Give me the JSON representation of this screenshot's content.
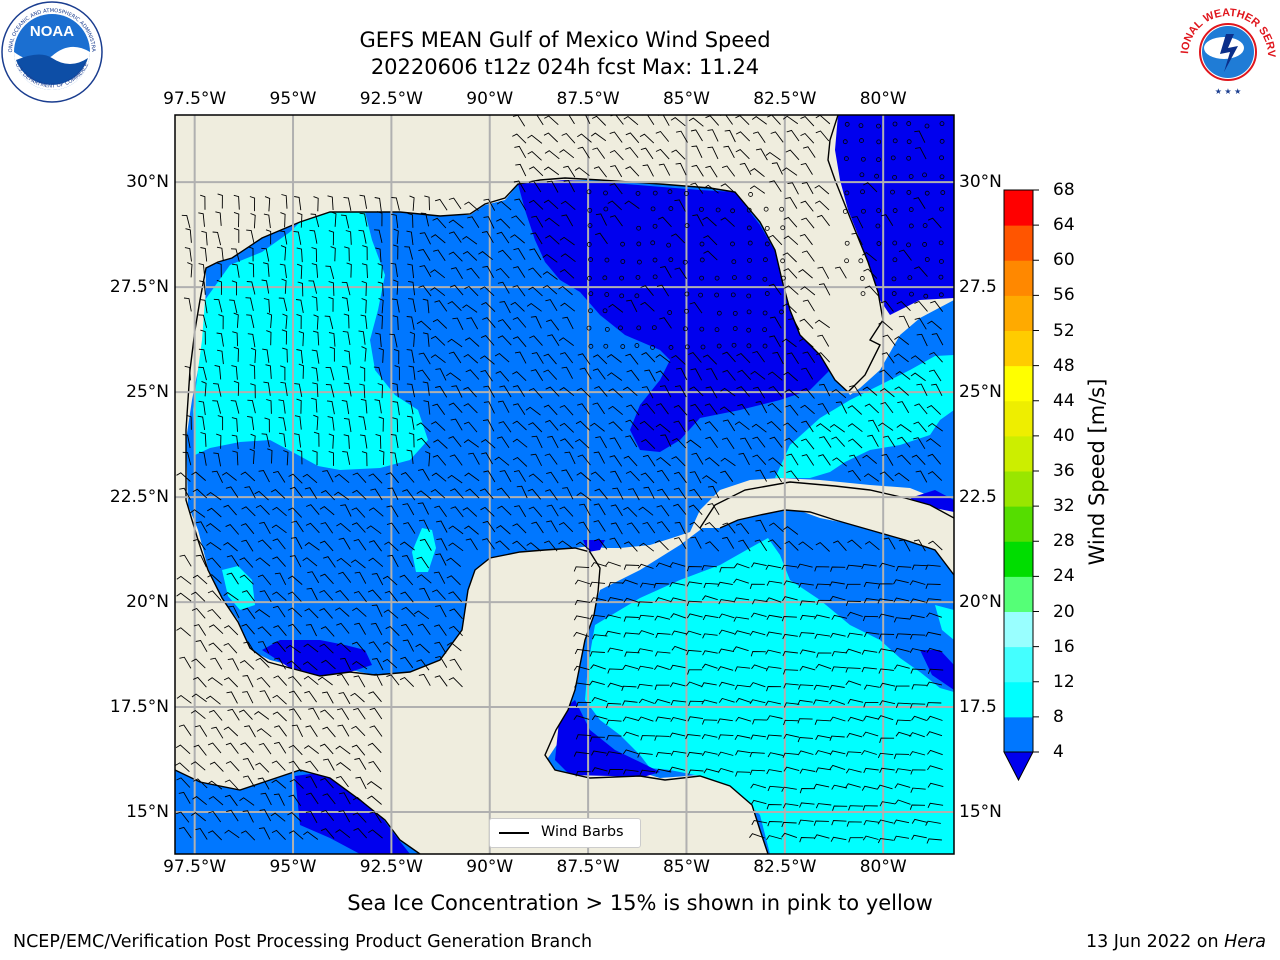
{
  "title": {
    "line1": "GEFS MEAN Gulf of Mexico Wind Speed",
    "line2": "20220606 t12z 024h fcst   Max: 11.24"
  },
  "axes": {
    "lon_labels": [
      "97.5°W",
      "95°W",
      "92.5°W",
      "90°W",
      "87.5°W",
      "85°W",
      "82.5°W",
      "80°W"
    ],
    "lon_values": [
      -97.5,
      -95,
      -92.5,
      -90,
      -87.5,
      -85,
      -82.5,
      -80
    ],
    "lat_labels_left": [
      "30°N",
      "27.5°N",
      "25°N",
      "22.5°N",
      "20°N",
      "17.5°N",
      "15°N"
    ],
    "lat_labels_right": [
      "30°N",
      "27.5",
      "25°N",
      "22.5",
      "20°N",
      "17.5",
      "15°N"
    ],
    "lat_values": [
      30,
      27.5,
      25,
      22.5,
      20,
      17.5,
      15
    ],
    "lon_range": [
      -98,
      -78.2
    ],
    "lat_range": [
      14,
      31.6
    ],
    "grid": true
  },
  "colorbar": {
    "title": "Wind Speed [m/s]",
    "levels": [
      4,
      8,
      12,
      16,
      20,
      24,
      28,
      32,
      36,
      40,
      44,
      48,
      52,
      56,
      60,
      64,
      68
    ],
    "colors": [
      "#0077ff",
      "#00ffff",
      "#44ffff",
      "#99ffff",
      "#55ff77",
      "#00dd00",
      "#55dd00",
      "#99e600",
      "#ccee00",
      "#eeee00",
      "#ffff00",
      "#ffcc00",
      "#ffaa00",
      "#ff8800",
      "#ff5500",
      "#ff0000"
    ],
    "under_color": "#0000ee"
  },
  "legend": {
    "label": "Wind Barbs"
  },
  "note": "Sea Ice Concentration > 15% is shown in pink to yellow",
  "footer": {
    "left": "NCEP/EMC/Verification Post Processing Product Generation Branch",
    "right_date": "13 Jun 2022 on ",
    "right_host": "Hera"
  },
  "logos": {
    "noaa": "NOAA",
    "nws_ring": "NATIONAL WEATHER SERVICE",
    "noaa_ring_top": "NATIONAL OCEANIC AND ATMOSPHERIC ADMINISTRATION",
    "noaa_ring_bottom": "U.S. DEPARTMENT OF COMMERCE"
  },
  "colors": {
    "land": "#efedde",
    "coast": "#000000",
    "grid": "#b0b0b0"
  }
}
